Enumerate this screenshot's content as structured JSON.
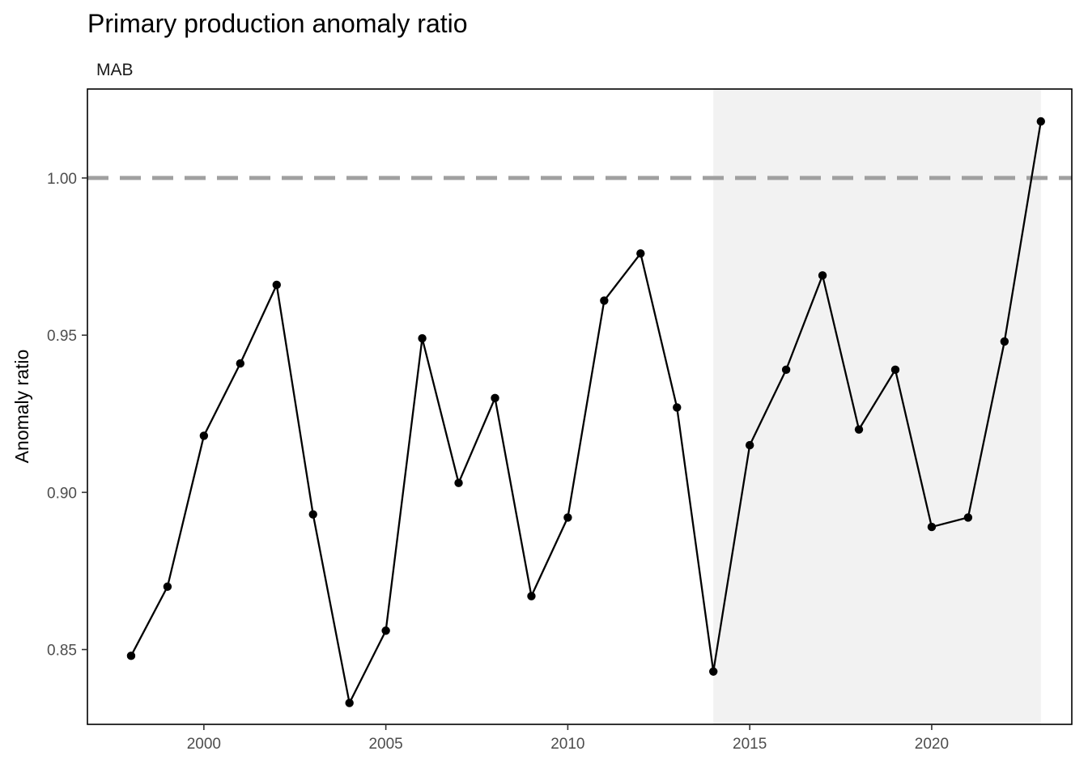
{
  "chart_data": {
    "type": "line",
    "title": "Primary production anomaly ratio",
    "subtitle": "MAB",
    "xlabel": "",
    "ylabel": "Anomaly ratio",
    "x_ticks": [
      2000,
      2005,
      2010,
      2015,
      2020
    ],
    "y_ticks": [
      0.85,
      0.9,
      0.95,
      1.0
    ],
    "y_tick_labels": [
      "0.85",
      "0.90",
      "0.95",
      "1.00"
    ],
    "xlim": [
      1996.8,
      2023.85
    ],
    "ylim": [
      0.8262,
      1.0283
    ],
    "reference_line": {
      "y": 1.0,
      "style": "dashed",
      "color": "#a0a0a0"
    },
    "shaded_region": {
      "x_start": 2014,
      "x_end": 2023,
      "color": "#f2f2f2"
    },
    "grid": false,
    "legend": "none",
    "series_color": "#000000",
    "series": [
      {
        "x": [
          1998,
          1999,
          2000,
          2001,
          2002,
          2003,
          2004,
          2005,
          2006,
          2007,
          2008,
          2009,
          2010,
          2011,
          2012,
          2013,
          2014,
          2015,
          2016,
          2017,
          2018,
          2019,
          2020,
          2021,
          2022,
          2023
        ],
        "y": [
          0.848,
          0.87,
          0.918,
          0.941,
          0.966,
          0.893,
          0.833,
          0.856,
          0.949,
          0.903,
          0.93,
          0.867,
          0.892,
          0.961,
          0.976,
          0.927,
          0.843,
          0.915,
          0.939,
          0.969,
          0.92,
          0.939,
          0.889,
          0.892,
          0.948,
          1.018
        ]
      }
    ]
  }
}
